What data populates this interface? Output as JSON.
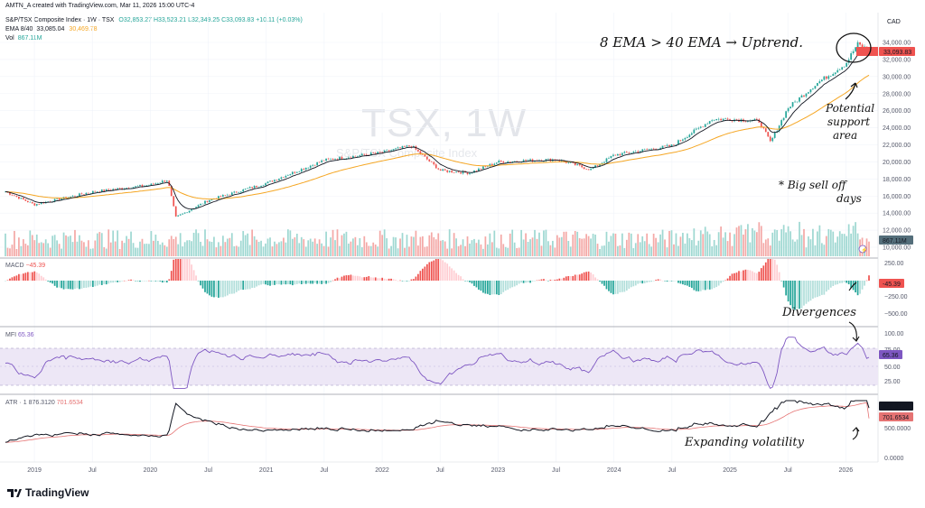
{
  "header": {
    "author_line": "AMTN_A created with TradingView.com, Mar 11, 2026 15:00 UTC-4",
    "symbol_line": "S&P/TSX Composite Index · 1W · TSX",
    "ohlc": "O32,853.27 H33,523.21 L32,349.25 C33,093.83 +10.11 (+0.03%)",
    "ema_label": "EMA 8/40",
    "ema8_value": "33,085.04",
    "ema40_value": "30,469.78",
    "vol_label": "Vol",
    "vol_value": "867.11M",
    "currency": "CAD"
  },
  "watermark": {
    "ticker": "TSX, 1W",
    "name": "S&P/TSX Composite Index"
  },
  "annotations": {
    "trend": "8 EMA > 40 EMA → Uptrend.",
    "support_1": "Potential",
    "support_2": "support",
    "support_3": "area",
    "selloff_1": "* Big sell off",
    "selloff_2": "days",
    "divergences": "Divergences",
    "volatility": "Expanding volatility"
  },
  "price_labels": {
    "last": "33,093.83",
    "vol": "867.11M",
    "macd": "-45.39",
    "mfi": "65.36",
    "atr_1": "876.3120",
    "atr_2": "701.6534"
  },
  "panes": {
    "macd": {
      "label": "MACD",
      "value": "−45.39"
    },
    "mfi": {
      "label": "MFI",
      "value": "65.36"
    },
    "atr": {
      "label": "ATR · 1",
      "v1": "876.3120",
      "v2": "701.6534"
    }
  },
  "footer": {
    "brand": "TradingView"
  },
  "colors": {
    "up": "#26a69a",
    "down": "#ef5350",
    "ema8": "#131722",
    "ema40": "#f5a623",
    "mfi": "#7e57c2",
    "atr2": "#e57373"
  },
  "chart_data": [
    {
      "type": "candlestick",
      "title": "S&P/TSX Composite Index, 1W",
      "x_ticks": [
        "2019",
        "Jul",
        "2020",
        "Jul",
        "2021",
        "Jul",
        "2022",
        "Jul",
        "2023",
        "Jul",
        "2024",
        "Jul",
        "2025",
        "Jul",
        "2026"
      ],
      "y_ticks": [
        "34,000.00",
        "32,000.00",
        "30,000.00",
        "28,000.00",
        "26,000.00",
        "24,000.00",
        "22,000.00",
        "20,000.00",
        "18,000.00",
        "16,000.00",
        "14,000.00",
        "12,000.00",
        "10,000.00"
      ],
      "ylim": [
        10000,
        34800
      ],
      "approx_close_path": {
        "t": [
          2018.75,
          2019.0,
          2019.5,
          2020.0,
          2020.15,
          2020.22,
          2020.5,
          2021.0,
          2021.5,
          2022.0,
          2022.25,
          2022.5,
          2022.75,
          2023.0,
          2023.5,
          2023.8,
          2024.0,
          2024.5,
          2024.85,
          2025.0,
          2025.25,
          2025.35,
          2025.5,
          2025.75,
          2026.0,
          2026.1,
          2026.2
        ],
        "v": [
          16500,
          15000,
          16500,
          17300,
          17900,
          13500,
          15500,
          17500,
          20200,
          21100,
          21900,
          19000,
          18700,
          20000,
          20300,
          19100,
          20800,
          21900,
          25000,
          25000,
          24800,
          22300,
          26300,
          29200,
          31500,
          33800,
          33093
        ]
      },
      "series": [
        {
          "name": "EMA 8",
          "last": 33085.04
        },
        {
          "name": "EMA 40",
          "last": 30469.78
        }
      ]
    },
    {
      "type": "bar",
      "title": "Vol",
      "last": "867.11M"
    },
    {
      "type": "bar",
      "title": "MACD",
      "y_ticks": [
        "250.00",
        "−250.00",
        "−500.00"
      ],
      "last": -45.39
    },
    {
      "type": "line",
      "title": "MFI",
      "y_ticks": [
        "100.00",
        "75.00",
        "50.00",
        "25.00"
      ],
      "bands": [
        80,
        20
      ],
      "last": 65.36
    },
    {
      "type": "line",
      "title": "ATR",
      "y_ticks": [
        "500.0000",
        "0.0000"
      ],
      "series": [
        {
          "name": "ATR",
          "last": 876.312
        },
        {
          "name": "ATR MA",
          "last": 701.6534
        }
      ]
    }
  ]
}
